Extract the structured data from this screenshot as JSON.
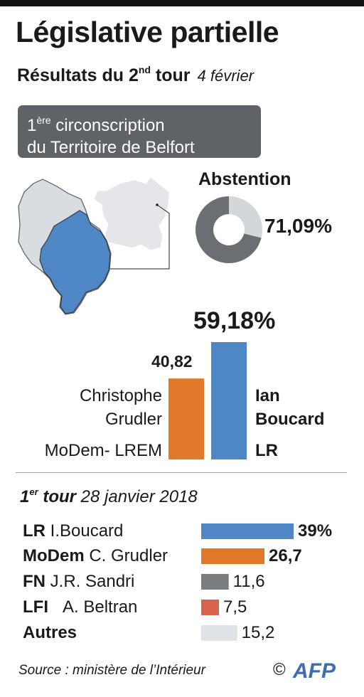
{
  "header": {
    "title": "Législative partielle",
    "subtitle_pre": "Résultats du 2",
    "subtitle_sup": "nd",
    "subtitle_post": " tour",
    "date": "4 février"
  },
  "circonscription": {
    "line1_pre": "1",
    "line1_sup": "ère",
    "line1_post": " circonscription",
    "line2": "du Territoire de Belfort"
  },
  "abstention": {
    "label": "Abstention",
    "value_text": "71,09%",
    "fraction": 0.7109,
    "color_filled": "#6b6e72",
    "color_rest": "#d4d7da"
  },
  "second_round": {
    "winner_pct_text": "59,18%",
    "loser_val_text": "40,82",
    "left": {
      "first": "Christophe",
      "last": "Grudler",
      "party": "MoDem- LREM",
      "color": "#e07a2a"
    },
    "right": {
      "first": "Ian",
      "last": "Boucard",
      "party": "LR",
      "color": "#4f86c6"
    }
  },
  "first_round": {
    "title_pre": "1",
    "title_sup": "er",
    "title_post": " tour",
    "date": "28 janvier 2018",
    "rows": [
      {
        "party": "LR",
        "name": "I.Boucard",
        "value_text": "39%",
        "value": 39,
        "color": "#4f86c6",
        "bold": true
      },
      {
        "party": "MoDem",
        "name": "C. Grudler",
        "value_text": "26,7",
        "value": 26.7,
        "color": "#e07a2a",
        "bold": true
      },
      {
        "party": "FN",
        "name": "J.R. Sandri",
        "value_text": "11,6",
        "value": 11.6,
        "color": "#7a7d80",
        "bold": false
      },
      {
        "party": "LFI",
        "name": "A. Beltran",
        "value_text": "7,5",
        "value": 7.5,
        "color": "#d9644c",
        "bold": false
      },
      {
        "party": "Autres",
        "name": "",
        "value_text": "15,2",
        "value": 15.2,
        "color": "#dfe3e7",
        "bold": false
      }
    ]
  },
  "chart_data": [
    {
      "type": "pie",
      "title": "Abstention",
      "categories": [
        "Abstention",
        ""
      ],
      "values": [
        71.09,
        28.91
      ]
    },
    {
      "type": "bar",
      "title": "Résultats du 2nd tour",
      "categories": [
        "Christophe Grudler MoDem- LREM",
        "Ian Boucard LR"
      ],
      "values": [
        40.82,
        59.18
      ]
    },
    {
      "type": "bar",
      "title": "1er tour 28 janvier 2018",
      "categories": [
        "LR I.Boucard",
        "MoDem C. Grudler",
        "FN J.R. Sandri",
        "LFI A. Beltran",
        "Autres"
      ],
      "values": [
        39,
        26.7,
        11.6,
        7.5,
        15.2
      ]
    }
  ],
  "footer": {
    "source": "Source : ministère de l’Intérieur",
    "copyright": "©",
    "logo": "AFP"
  }
}
